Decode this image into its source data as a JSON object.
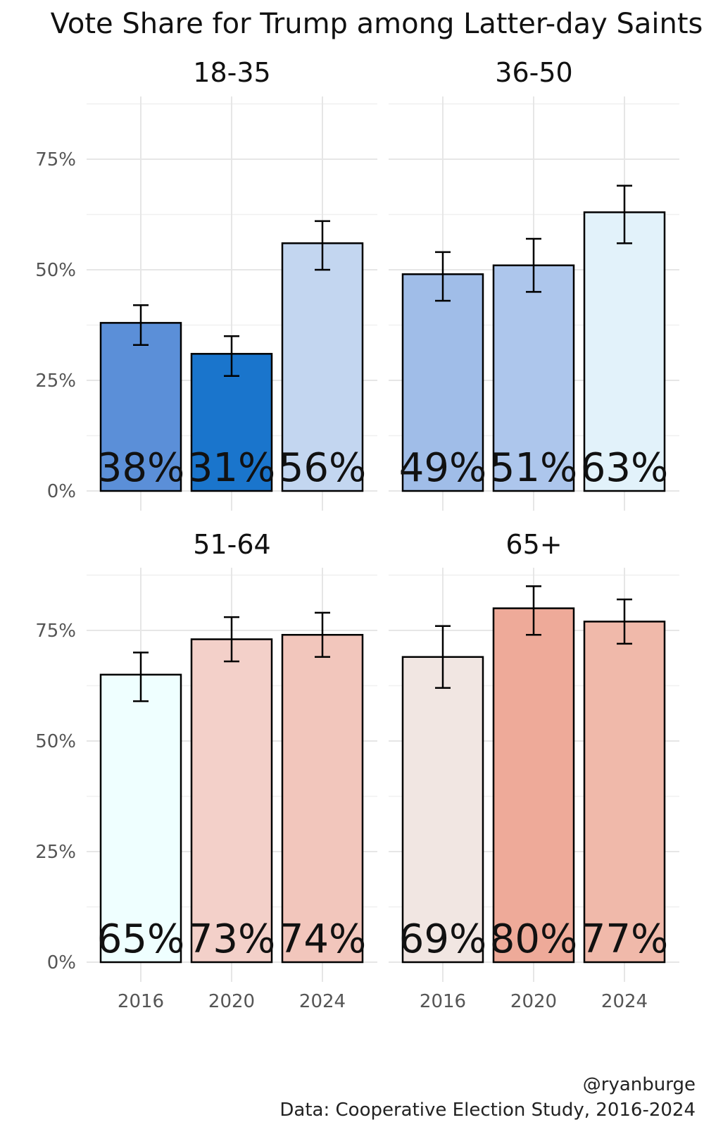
{
  "chart_data": {
    "type": "bar",
    "title": "Vote Share for Trump among Latter-day Saints",
    "categories": [
      "2016",
      "2020",
      "2024"
    ],
    "y_ticks": [
      "0%",
      "25%",
      "50%",
      "75%"
    ],
    "ylim": [
      0,
      0.9
    ],
    "xlabel": "",
    "ylabel": "",
    "facets": [
      {
        "name": "18-35",
        "values": [
          0.38,
          0.31,
          0.56
        ],
        "labels": [
          "38%",
          "31%",
          "56%"
        ],
        "err_low": [
          0.33,
          0.26,
          0.5
        ],
        "err_high": [
          0.42,
          0.35,
          0.61
        ],
        "colors": [
          "#5b8fd8",
          "#1a75cc",
          "#c3d6f0"
        ]
      },
      {
        "name": "36-50",
        "values": [
          0.49,
          0.51,
          0.63
        ],
        "labels": [
          "49%",
          "51%",
          "63%"
        ],
        "err_low": [
          0.43,
          0.45,
          0.56
        ],
        "err_high": [
          0.54,
          0.57,
          0.69
        ],
        "colors": [
          "#a0bde8",
          "#adc6ec",
          "#e2f2fa"
        ]
      },
      {
        "name": "51-64",
        "values": [
          0.65,
          0.73,
          0.74
        ],
        "labels": [
          "65%",
          "73%",
          "74%"
        ],
        "err_low": [
          0.59,
          0.68,
          0.69
        ],
        "err_high": [
          0.7,
          0.78,
          0.79
        ],
        "colors": [
          "#efffff",
          "#f3d0c9",
          "#f2c6bc"
        ]
      },
      {
        "name": "65+",
        "values": [
          0.69,
          0.8,
          0.77
        ],
        "labels": [
          "69%",
          "80%",
          "77%"
        ],
        "err_low": [
          0.62,
          0.74,
          0.72
        ],
        "err_high": [
          0.76,
          0.85,
          0.82
        ],
        "colors": [
          "#f1e6e2",
          "#eeaa99",
          "#f0b9aa"
        ]
      }
    ],
    "caption": [
      "@ryanburge",
      "Data: Cooperative Election Study, 2016-2024"
    ]
  }
}
